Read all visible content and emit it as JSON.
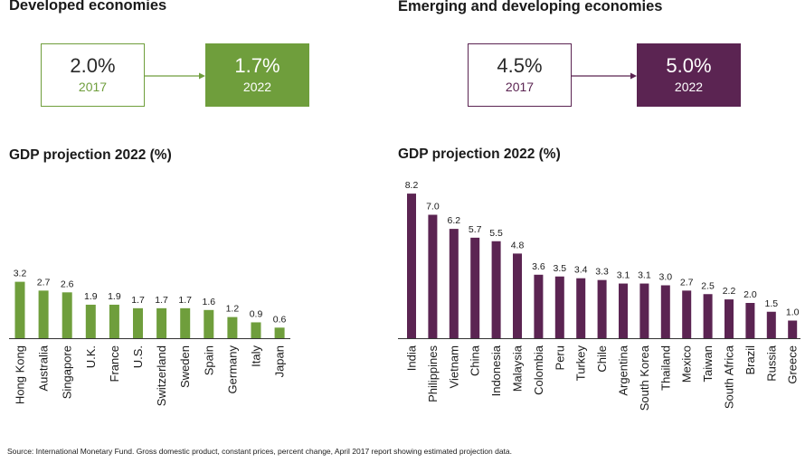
{
  "developed": {
    "title": "Developed economies",
    "from": {
      "value": "2.0%",
      "year": "2017"
    },
    "to": {
      "value": "1.7%",
      "year": "2022"
    }
  },
  "emerging": {
    "title": "Emerging and developing economies",
    "from": {
      "value": "4.5%",
      "year": "2017"
    },
    "to": {
      "value": "5.0%",
      "year": "2022"
    }
  },
  "colors": {
    "green": "#6f9e3c",
    "purple": "#5b2452"
  },
  "chart_data": [
    {
      "type": "bar",
      "title": "GDP projection 2022 (%)",
      "categories": [
        "Hong Kong",
        "Australia",
        "Singapore",
        "U.K.",
        "France",
        "U.S.",
        "Switzerland",
        "Sweden",
        "Spain",
        "Germany",
        "Italy",
        "Japan"
      ],
      "values": [
        3.2,
        2.7,
        2.6,
        1.9,
        1.9,
        1.7,
        1.7,
        1.7,
        1.6,
        1.2,
        0.9,
        0.6
      ],
      "labels": [
        "3.2",
        "2.7",
        "2.6",
        "1.9",
        "1.9",
        "1.7",
        "1.7",
        "1.7",
        "1.6",
        "1.2",
        "0.9",
        "0.6"
      ],
      "color": "#6f9e3c",
      "ylim": [
        0,
        8.2
      ]
    },
    {
      "type": "bar",
      "title": "GDP projection 2022 (%)",
      "categories": [
        "India",
        "Philippines",
        "Vietnam",
        "China",
        "Indonesia",
        "Malaysia",
        "Colombia",
        "Peru",
        "Turkey",
        "Chile",
        "Argentina",
        "South Korea",
        "Thailand",
        "Mexico",
        "Taiwan",
        "South Africa",
        "Brazil",
        "Russia",
        "Greece"
      ],
      "values": [
        8.2,
        7.0,
        6.2,
        5.7,
        5.5,
        4.8,
        3.6,
        3.5,
        3.4,
        3.3,
        3.1,
        3.1,
        3.0,
        2.7,
        2.5,
        2.2,
        2.0,
        1.5,
        1.0
      ],
      "labels": [
        "8.2",
        "7.0",
        "6.2",
        "5.7",
        "5.5",
        "4.8",
        "3.6",
        "3.5",
        "3.4",
        "3.3",
        "3.1",
        "3.1",
        "3.0",
        "2.7",
        "2.5",
        "2.2",
        "2.0",
        "1.5",
        "1.0"
      ],
      "color": "#5b2452",
      "ylim": [
        0,
        8.2
      ]
    }
  ],
  "source": "Source: International Monetary Fund. Gross domestic product, constant prices, percent change, April 2017 report showing estimated projection data."
}
